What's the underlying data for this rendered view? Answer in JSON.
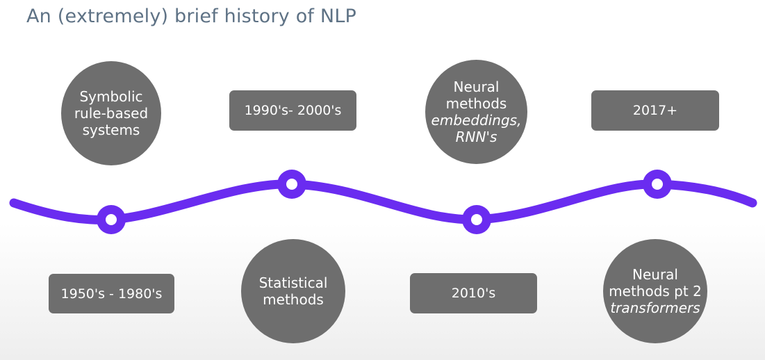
{
  "title": "An (extremely) brief history of NLP",
  "colors": {
    "line": "#6a2cf0",
    "shape_fill": "#6e6e6e",
    "title": "#5e7285",
    "text": "#ffffff"
  },
  "eras": [
    {
      "period": "1950's - 1980's",
      "label_lines": [
        "Symbolic",
        "rule-based",
        "systems"
      ],
      "italic_lines": []
    },
    {
      "period": "1990's- 2000's",
      "label_lines": [
        "Statistical",
        "methods"
      ],
      "italic_lines": []
    },
    {
      "period": "2010's",
      "label_lines": [
        "Neural",
        "methods"
      ],
      "italic_lines": [
        "embeddings,",
        "RNN's"
      ]
    },
    {
      "period": "2017+",
      "label_lines": [
        "Neural",
        "methods pt 2"
      ],
      "italic_lines": [
        "transformers"
      ]
    }
  ]
}
